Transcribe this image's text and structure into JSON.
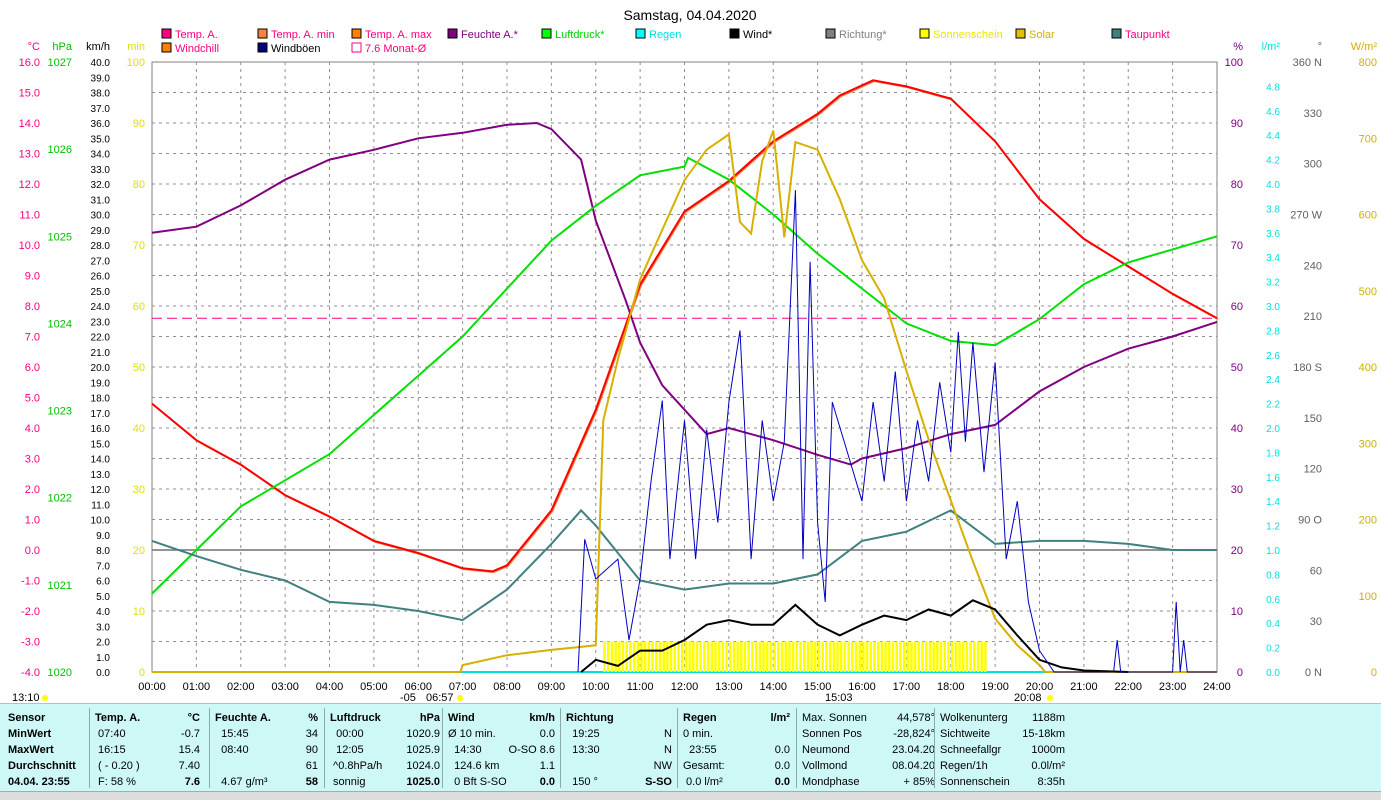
{
  "chart_data": {
    "type": "line",
    "title": "Samstag, 04.04.2020",
    "x_labels": [
      "00:00",
      "01:00",
      "02:00",
      "03:00",
      "04:00",
      "05:00",
      "06:00",
      "07:00",
      "08:00",
      "09:00",
      "10:00",
      "11:00",
      "12:00",
      "13:00",
      "14:00",
      "15:00",
      "16:00",
      "17:00",
      "18:00",
      "19:00",
      "20:00",
      "21:00",
      "22:00",
      "23:00",
      "24:00"
    ],
    "xlim": [
      0,
      24
    ],
    "axes": {
      "temp": {
        "unit": "°C",
        "min": -4,
        "max": 16,
        "step": 1,
        "color": "#ff0080"
      },
      "pressure": {
        "unit": "hPa",
        "min": 1020,
        "max": 1027,
        "step": 1,
        "color": "#00c000"
      },
      "wind": {
        "unit": "km/h",
        "min": 0,
        "max": 40,
        "step": 1,
        "color": "#000000"
      },
      "minutes": {
        "unit": "min",
        "min": 0,
        "max": 100,
        "step": 10,
        "color": "#e0e000"
      },
      "humidity": {
        "unit": "%",
        "min": 0,
        "max": 100,
        "step": 10,
        "color": "#800080"
      },
      "rain": {
        "unit": "l/m²",
        "min": 0,
        "max": 5,
        "step": 0.2,
        "color": "#00e0e0"
      },
      "direction": {
        "unit": "°",
        "min": 0,
        "max": 360,
        "step": 30,
        "color": "#606060",
        "compass": {
          "0": "N",
          "90": "O",
          "180": "S",
          "270": "W",
          "360": "N"
        }
      },
      "solar": {
        "unit": "W/m²",
        "min": 0,
        "max": 800,
        "step": 100,
        "color": "#d0b000"
      }
    },
    "legend": [
      {
        "label": "Temp. A.",
        "color": "#ff0080",
        "text": "#ff0080"
      },
      {
        "label": "Temp. A. min",
        "color": "#ff8040",
        "text": "#ff0080"
      },
      {
        "label": "Temp. A. max",
        "color": "#ff8000",
        "text": "#ff0080"
      },
      {
        "label": "Feuchte A.*",
        "color": "#800080",
        "text": "#800080"
      },
      {
        "label": "Luftdruck*",
        "color": "#00ff00",
        "text": "#00d000"
      },
      {
        "label": "Regen",
        "color": "#00ffff",
        "text": "#00e0e0"
      },
      {
        "label": "Wind*",
        "color": "#000000",
        "text": "#000000"
      },
      {
        "label": "Richtung*",
        "color": "#808080",
        "text": "#808080"
      },
      {
        "label": "Sonnenschein",
        "color": "#ffff00",
        "text": "#e8e800"
      },
      {
        "label": "Solar",
        "color": "#e0c000",
        "text": "#d0b000"
      },
      {
        "label": "Taupunkt",
        "color": "#408080",
        "text": "#ff0080"
      },
      {
        "label": "Windchill",
        "color": "#ff8000",
        "text": "#ff0080"
      },
      {
        "label": "Windböen",
        "color": "#000080",
        "text": "#000000"
      },
      {
        "label": "7.6 Monat-Ø",
        "color": "none",
        "text": "#ff0080"
      }
    ],
    "monthly_avg_temp": 7.6,
    "series": [
      {
        "name": "Temp. A.",
        "axis": "temp",
        "color": "#ff0000",
        "x": [
          0,
          1,
          2,
          3,
          4,
          5,
          6,
          7,
          7.67,
          8,
          9,
          10,
          11,
          12,
          13,
          14,
          15,
          15.5,
          16.25,
          17,
          18,
          19,
          20,
          21,
          22,
          23,
          24
        ],
        "y": [
          4.8,
          3.6,
          2.8,
          1.8,
          1.1,
          0.3,
          -0.1,
          -0.6,
          -0.7,
          -0.5,
          1.3,
          4.6,
          8.7,
          11.1,
          12.1,
          13.4,
          14.3,
          14.9,
          15.4,
          15.2,
          14.8,
          13.4,
          11.5,
          10.2,
          9.3,
          8.4,
          7.6
        ]
      },
      {
        "name": "Feuchte A.",
        "axis": "humidity",
        "color": "#800080",
        "x": [
          0,
          1,
          2,
          3,
          4,
          5,
          6,
          7,
          8,
          8.67,
          9,
          9.67,
          10,
          10.67,
          11,
          11.5,
          12,
          12.5,
          13,
          14,
          15,
          15.75,
          16,
          17,
          18,
          19,
          20,
          21,
          22,
          23,
          24
        ],
        "y": [
          72,
          73,
          76.5,
          80.7,
          84,
          85.6,
          87.5,
          88.4,
          89.7,
          90,
          89,
          84,
          74,
          61,
          54,
          47,
          43,
          39,
          40,
          38,
          35.6,
          34,
          35,
          36.7,
          39,
          40.5,
          46,
          50,
          53,
          55,
          57.4
        ]
      },
      {
        "name": "Luftdruck",
        "axis": "pressure",
        "color": "#00e000",
        "x": [
          0,
          1,
          2,
          3,
          4,
          5,
          6,
          7,
          8,
          9,
          10,
          11,
          12,
          12.08,
          13,
          14,
          15,
          16,
          17,
          18,
          19,
          20,
          21,
          22,
          23,
          24
        ],
        "y": [
          1020.9,
          1021.4,
          1021.9,
          1022.2,
          1022.5,
          1022.95,
          1023.4,
          1023.85,
          1024.4,
          1024.95,
          1025.35,
          1025.7,
          1025.8,
          1025.9,
          1025.65,
          1025.25,
          1024.8,
          1024.4,
          1024.0,
          1023.8,
          1023.75,
          1024.05,
          1024.45,
          1024.7,
          1024.85,
          1025.0
        ]
      },
      {
        "name": "Taupunkt",
        "axis": "temp",
        "color": "#408080",
        "x": [
          0,
          1,
          2,
          3,
          4,
          5,
          6,
          7,
          8,
          9,
          9.67,
          10,
          11,
          12,
          13,
          14,
          15,
          16,
          17,
          18,
          19,
          20,
          21,
          22,
          23,
          24
        ],
        "y": [
          0.3,
          -0.2,
          -0.65,
          -1.0,
          -1.7,
          -1.8,
          -2.0,
          -2.3,
          -1.3,
          0.2,
          1.3,
          0.8,
          -1.0,
          -1.3,
          -1.1,
          -1.1,
          -0.8,
          0.3,
          0.6,
          1.3,
          0.2,
          0.3,
          0.3,
          0.2,
          0.0,
          0.0
        ]
      },
      {
        "name": "Solar",
        "axis": "solar",
        "color": "#d8b000",
        "x": [
          0,
          6.95,
          7,
          8,
          9,
          10,
          10.17,
          10.5,
          11,
          11.5,
          12,
          12.5,
          13,
          13.25,
          13.5,
          13.75,
          14,
          14.25,
          14.5,
          15,
          15.5,
          16,
          16.5,
          17,
          17.5,
          18,
          18.5,
          19,
          19.5,
          20,
          20.13,
          24
        ],
        "y": [
          0,
          0,
          9,
          22,
          29,
          35,
          330,
          410,
          515,
          580,
          645,
          685,
          705,
          590,
          575,
          670,
          710,
          570,
          695,
          685,
          620,
          540,
          490,
          395,
          305,
          225,
          145,
          70,
          35,
          9,
          0,
          0
        ]
      },
      {
        "name": "Wind",
        "axis": "wind",
        "color": "#000000",
        "x": [
          9.67,
          10,
          10.5,
          11,
          11.5,
          12,
          12.5,
          13,
          13.5,
          14,
          14.5,
          15,
          15.5,
          16,
          16.5,
          17,
          17.5,
          18,
          18.5,
          19,
          19.5,
          20,
          20.5,
          21,
          22
        ],
        "y": [
          0,
          0.8,
          0.4,
          1.4,
          1.4,
          2.1,
          3.1,
          3.4,
          3.1,
          3.1,
          4.4,
          3.1,
          2.4,
          3.1,
          3.7,
          3.4,
          4.1,
          3.7,
          4.7,
          4.1,
          2.4,
          0.8,
          0.3,
          0.1,
          0
        ]
      },
      {
        "name": "Windböen",
        "axis": "wind",
        "color": "#0000c0",
        "x": [
          9.6,
          9.75,
          10,
          10.5,
          10.75,
          11,
          11.25,
          11.5,
          11.67,
          12,
          12.25,
          12.5,
          12.75,
          13,
          13.25,
          13.5,
          13.75,
          14,
          14.25,
          14.5,
          14.67,
          14.83,
          15,
          15.17,
          15.33,
          15.67,
          16,
          16.25,
          16.5,
          16.75,
          17,
          17.25,
          17.5,
          17.75,
          18,
          18.17,
          18.33,
          18.5,
          18.75,
          19,
          19.25,
          19.5,
          19.75,
          20,
          20.33,
          21.67,
          21.75,
          21.83,
          23,
          23.08,
          23.17,
          23.25,
          23.33,
          24
        ],
        "y": [
          0,
          8.7,
          6.1,
          7.4,
          2.1,
          6.1,
          12.6,
          17.8,
          7.4,
          16.5,
          7.4,
          15.9,
          9.8,
          17.7,
          22.4,
          7.4,
          16.5,
          11.2,
          15.1,
          31.6,
          7.4,
          26.9,
          9.8,
          4.6,
          17.7,
          14.4,
          11.2,
          17.7,
          12.5,
          19.7,
          11.2,
          16.5,
          12.5,
          19.0,
          14.4,
          22.3,
          15.1,
          21.6,
          13.1,
          20.3,
          7.4,
          11.2,
          4.6,
          1.4,
          0,
          0,
          2.1,
          0,
          0,
          4.6,
          0,
          2.1,
          0,
          0
        ]
      }
    ],
    "sunshine_bars": {
      "axis": "minutes",
      "from": 10.17,
      "to": 18.83,
      "value": 5,
      "color": "#ffff00"
    },
    "time_annotations": [
      {
        "time": "13:10"
      },
      {
        "time": "06:57",
        "prefix": "-05"
      },
      {
        "time": "15:03"
      },
      {
        "time": "20:08"
      }
    ]
  },
  "table": {
    "sections": [
      {
        "head": [
          "Sensor",
          ""
        ],
        "bold": true,
        "rows": [
          [
            "MinWert",
            ""
          ],
          [
            "MaxWert",
            ""
          ],
          [
            "Durchschnitt",
            ""
          ],
          [
            "04.04. 23:55",
            ""
          ]
        ]
      },
      {
        "head": [
          "Temp. A.",
          "°C"
        ],
        "rows": [
          [
            " 07:40",
            "-0.7"
          ],
          [
            " 16:15",
            "15.4"
          ],
          [
            " ( - 0.20 )",
            "7.40"
          ],
          [
            " F: 58 %",
            "7.6"
          ]
        ]
      },
      {
        "head": [
          "Feuchte A.",
          "%"
        ],
        "rows": [
          [
            "  15:45",
            "34"
          ],
          [
            "  08:40",
            "90"
          ],
          [
            "",
            "61"
          ],
          [
            "  4.67 g/m³",
            "58"
          ]
        ]
      },
      {
        "head": [
          "Luftdruck",
          "hPa"
        ],
        "rows": [
          [
            "  00:00",
            "1020.9"
          ],
          [
            "  12:05",
            "1025.9"
          ],
          [
            " ^0.8hPa/h",
            "1024.0"
          ],
          [
            " sonnig",
            "1025.0"
          ]
        ]
      },
      {
        "head": [
          "Wind",
          "km/h"
        ],
        "rows": [
          [
            "Ø 10 min.",
            "0.0"
          ],
          [
            "  14:30",
            "O-SO 8.6"
          ],
          [
            "  124.6 km",
            "1.1"
          ],
          [
            "  0 Bft S-SO",
            "0.0"
          ]
        ]
      },
      {
        "head": [
          "Richtung",
          ""
        ],
        "rows": [
          [
            "  19:25",
            "N"
          ],
          [
            "  13:30",
            "N"
          ],
          [
            "",
            "NW"
          ],
          [
            "  150 °",
            "S-SO"
          ]
        ]
      },
      {
        "head": [
          "Regen",
          "l/m²"
        ],
        "rows": [
          [
            "0 min.",
            ""
          ],
          [
            "  23:55",
            "0.0"
          ],
          [
            "Gesamt:",
            "0.0"
          ],
          [
            " 0.0 l/m²",
            "0.0"
          ]
        ]
      },
      {
        "head": [
          "Max. Sonnen",
          "44,578°"
        ],
        "plain": true,
        "rows": [
          [
            "Sonnen Pos",
            "-28,824°"
          ],
          [
            "Neumond",
            "23.04.20"
          ],
          [
            "Vollmond",
            "08.04.20"
          ],
          [
            "Mondphase",
            "+ 85%"
          ]
        ]
      },
      {
        "head": [
          "Wolkenunterg",
          "1188m"
        ],
        "plain": true,
        "rows": [
          [
            "Sichtweite",
            "15-18km"
          ],
          [
            "Schneefallgr",
            "1000m"
          ],
          [
            "Regen/1h",
            "0.0l/m²"
          ],
          [
            "Sonnenschein",
            "8:35h"
          ]
        ]
      }
    ]
  }
}
